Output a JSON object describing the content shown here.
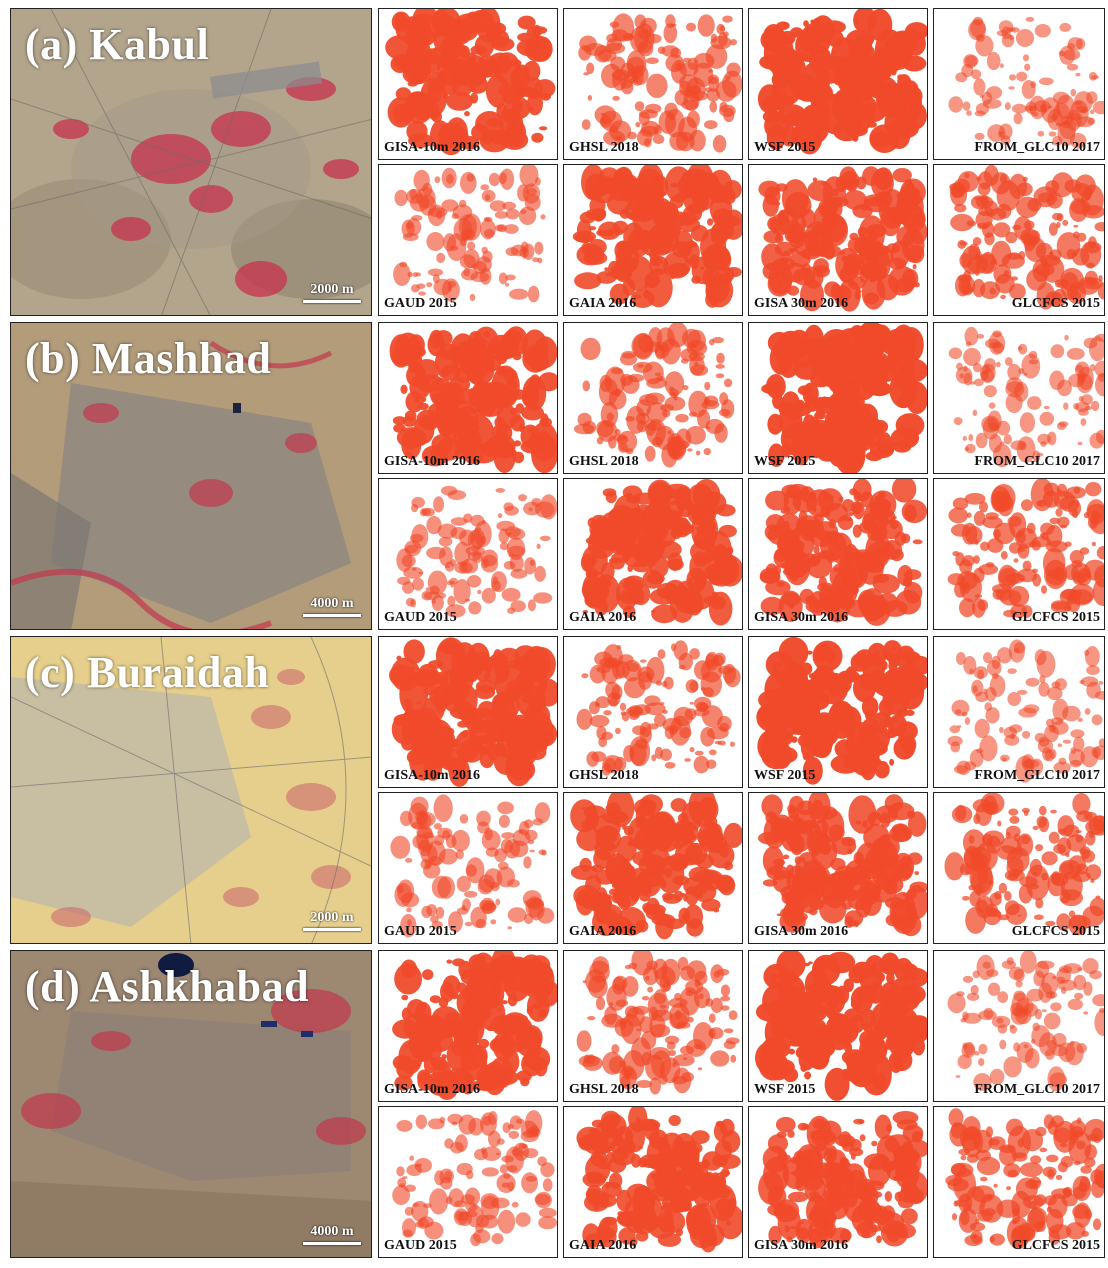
{
  "rows": [
    {
      "city": "(a) Kabul",
      "scale": "2000 m",
      "products": [
        "GISA-10m 2016",
        "GHSL 2018",
        "WSF 2015",
        "FROM_GLC10 2017",
        "GAUD 2015",
        "GAIA 2016",
        "GISA 30m 2016",
        "GLCFCS 2015"
      ]
    },
    {
      "city": "(b) Mashhad",
      "scale": "4000 m",
      "products": [
        "GISA-10m 2016",
        "GHSL 2018",
        "WSF 2015",
        "FROM_GLC10 2017",
        "GAUD 2015",
        "GAIA 2016",
        "GISA 30m 2016",
        "GLCFCS 2015"
      ]
    },
    {
      "city": "(c) Buraidah",
      "scale": "2000 m",
      "products": [
        "GISA-10m 2016",
        "GHSL 2018",
        "WSF 2015",
        "FROM_GLC10 2017",
        "GAUD 2015",
        "GAIA 2016",
        "GISA 30m 2016",
        "GLCFCS 2015"
      ]
    },
    {
      "city": "(d) Ashkhabad",
      "scale": "4000 m",
      "products": [
        "GISA-10m 2016",
        "GHSL 2018",
        "WSF 2015",
        "FROM_GLC10 2017",
        "GAUD 2015",
        "GAIA 2016",
        "GISA 30m 2016",
        "GLCFCS 2015"
      ]
    }
  ],
  "colors": {
    "impervious": "#f04a2a",
    "frame": "#222222"
  }
}
